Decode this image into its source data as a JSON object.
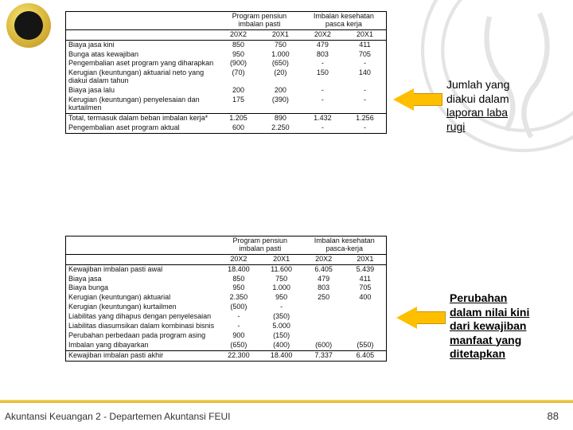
{
  "logo": {
    "alt": "Universitas Indonesia logo"
  },
  "callout1": {
    "l1": "Jumlah yang",
    "l2": "diakui dalam",
    "l3": "laporan laba",
    "l4": "rugi"
  },
  "callout2": {
    "l1": "Perubahan",
    "l2": "dalam nilai kini",
    "l3": "dari kewajiban",
    "l4": "manfaat yang",
    "l5": "ditetapkan"
  },
  "table1": {
    "headA": "Program pensiun imbalan pasti",
    "headB": "Imbalan kesehatan pasca kerja",
    "y1": "20X2",
    "y2": "20X1",
    "y3": "20X2",
    "y4": "20X1",
    "rows": [
      {
        "d": "Biaya jasa kini",
        "c": [
          "850",
          "750",
          "479",
          "411"
        ]
      },
      {
        "d": "Bunga atas kewajiban",
        "c": [
          "950",
          "1.000",
          "803",
          "705"
        ]
      },
      {
        "d": "Pengembalian aset program yang diharapkan",
        "c": [
          "(900)",
          "(650)",
          "-",
          "-"
        ]
      },
      {
        "d": "Kerugian (keuntungan) aktuarial neto yang diakui dalam tahun",
        "c": [
          "(70)",
          "(20)",
          "150",
          "140"
        ]
      },
      {
        "d": "Biaya jasa lalu",
        "c": [
          "200",
          "200",
          "-",
          "-"
        ]
      },
      {
        "d": "Kerugian (keuntungan) penyelesaian dan kurtailmen",
        "c": [
          "175",
          "(390)",
          "-",
          "-"
        ]
      },
      {
        "d": "Total, termasuk dalam beban imbalan kerja*",
        "c": [
          "1.205",
          "890",
          "1.432",
          "1.256"
        ]
      },
      {
        "d": "Pengembalian aset program aktual",
        "c": [
          "600",
          "2.250",
          "-",
          "-"
        ]
      }
    ]
  },
  "table2": {
    "headA": "Program pensiun imbalan pasti",
    "headB": "Imbalan kesehatan pasca-kerja",
    "y1": "20X2",
    "y2": "20X1",
    "y3": "20X2",
    "y4": "20X1",
    "rows": [
      {
        "d": "Kewajiban imbalan pasti awal",
        "c": [
          "18.400",
          "11.600",
          "6.405",
          "5.439"
        ]
      },
      {
        "d": "Biaya jasa",
        "c": [
          "850",
          "750",
          "479",
          "411"
        ]
      },
      {
        "d": "Biaya bunga",
        "c": [
          "950",
          "1.000",
          "803",
          "705"
        ]
      },
      {
        "d": "Kerugian (keuntungan) aktuarial",
        "c": [
          "2.350",
          "950",
          "250",
          "400"
        ]
      },
      {
        "d": "Kerugian (keuntungan) kurtailmen",
        "c": [
          "(500)",
          "-",
          "",
          ""
        ]
      },
      {
        "d": "Liabilitas yang dihapus dengan penyelesaian",
        "c": [
          "-",
          "(350)",
          "",
          ""
        ]
      },
      {
        "d": "Liabilitas diasumsikan dalam kombinasi bisnis",
        "c": [
          "-",
          "5.000",
          "",
          ""
        ]
      },
      {
        "d": "Perubahan perbedaan pada program asing",
        "c": [
          "900",
          "(150)",
          "",
          ""
        ]
      },
      {
        "d": "Imbalan yang dibayarkan",
        "c": [
          "(650)",
          "(400)",
          "(600)",
          "(550)"
        ]
      },
      {
        "d": "Kewajiban imbalan pasti akhir",
        "c": [
          "22.300",
          "18.400",
          "7.337",
          "6.405"
        ]
      }
    ]
  },
  "footer": "Akuntansi Keuangan 2 - Departemen Akuntansi FEUI",
  "page": "88"
}
